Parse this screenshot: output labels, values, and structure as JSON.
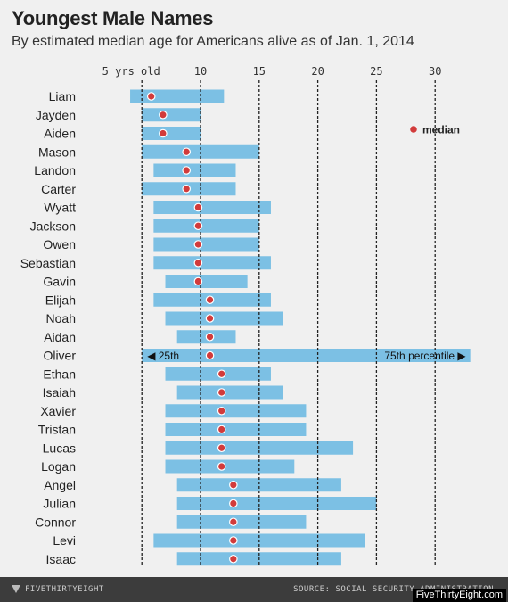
{
  "header": {
    "title": "Youngest Male Names",
    "subtitle": "By estimated median age for Americans alive as of Jan. 1, 2014"
  },
  "footer": {
    "logo_text": "FIVETHIRTYEIGHT",
    "source": "SOURCE: SOCIAL SECURITY ADMINISTRATION",
    "watermark": "FiveThirtyEight.com"
  },
  "colors": {
    "bar": "#7cc0e4",
    "median": "#d23b3b",
    "grid": "#222222",
    "background": "#f0f0f0"
  },
  "chart_data": {
    "type": "range-bar",
    "title": "Youngest Male Names",
    "subtitle": "By estimated median age for Americans alive as of Jan. 1, 2014",
    "x_ticks": [
      {
        "value": 5,
        "label": "5 yrs old"
      },
      {
        "value": 10,
        "label": "10"
      },
      {
        "value": 15,
        "label": "15"
      },
      {
        "value": 20,
        "label": "20"
      },
      {
        "value": 25,
        "label": "25"
      },
      {
        "value": 30,
        "label": "30"
      }
    ],
    "xlim": [
      4,
      34
    ],
    "grid": "vertical-dashed",
    "legend": {
      "label": "median",
      "placement": "top-right"
    },
    "annotation": {
      "row": "Oliver",
      "left": "◀ 25th",
      "right": "75th percentile ▶"
    },
    "rows": [
      {
        "name": "Liam",
        "p25": 4,
        "median": 5.8,
        "p75": 12
      },
      {
        "name": "Jayden",
        "p25": 5,
        "median": 6.8,
        "p75": 10
      },
      {
        "name": "Aiden",
        "p25": 5,
        "median": 6.8,
        "p75": 10
      },
      {
        "name": "Mason",
        "p25": 5,
        "median": 8.8,
        "p75": 15
      },
      {
        "name": "Landon",
        "p25": 6,
        "median": 8.8,
        "p75": 13
      },
      {
        "name": "Carter",
        "p25": 5,
        "median": 8.8,
        "p75": 13
      },
      {
        "name": "Wyatt",
        "p25": 6,
        "median": 9.8,
        "p75": 16
      },
      {
        "name": "Jackson",
        "p25": 6,
        "median": 9.8,
        "p75": 15
      },
      {
        "name": "Owen",
        "p25": 6,
        "median": 9.8,
        "p75": 15
      },
      {
        "name": "Sebastian",
        "p25": 6,
        "median": 9.8,
        "p75": 16
      },
      {
        "name": "Gavin",
        "p25": 7,
        "median": 9.8,
        "p75": 14
      },
      {
        "name": "Elijah",
        "p25": 6,
        "median": 10.8,
        "p75": 16
      },
      {
        "name": "Noah",
        "p25": 7,
        "median": 10.8,
        "p75": 17
      },
      {
        "name": "Aidan",
        "p25": 8,
        "median": 10.8,
        "p75": 13
      },
      {
        "name": "Oliver",
        "p25": 5,
        "median": 10.8,
        "p75": 33
      },
      {
        "name": "Ethan",
        "p25": 7,
        "median": 11.8,
        "p75": 16
      },
      {
        "name": "Isaiah",
        "p25": 8,
        "median": 11.8,
        "p75": 17
      },
      {
        "name": "Xavier",
        "p25": 7,
        "median": 11.8,
        "p75": 19
      },
      {
        "name": "Tristan",
        "p25": 7,
        "median": 11.8,
        "p75": 19
      },
      {
        "name": "Lucas",
        "p25": 7,
        "median": 11.8,
        "p75": 23
      },
      {
        "name": "Logan",
        "p25": 7,
        "median": 11.8,
        "p75": 18
      },
      {
        "name": "Angel",
        "p25": 8,
        "median": 12.8,
        "p75": 22
      },
      {
        "name": "Julian",
        "p25": 8,
        "median": 12.8,
        "p75": 25
      },
      {
        "name": "Connor",
        "p25": 8,
        "median": 12.8,
        "p75": 19
      },
      {
        "name": "Levi",
        "p25": 6,
        "median": 12.8,
        "p75": 24
      },
      {
        "name": "Isaac",
        "p25": 8,
        "median": 12.8,
        "p75": 22
      }
    ]
  }
}
